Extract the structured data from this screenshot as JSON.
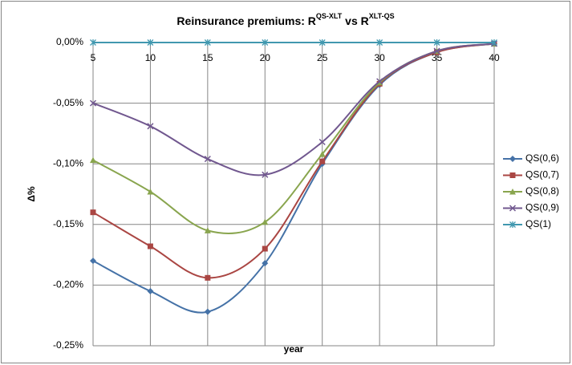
{
  "chart_data": {
    "type": "line",
    "title": [
      "Reinsurance premiums: R",
      "QS-XLT",
      " vs R",
      "XLT-QS"
    ],
    "x_label": "year",
    "y_label": "Δ%",
    "x": [
      5,
      10,
      15,
      20,
      25,
      30,
      35,
      40
    ],
    "series": [
      {
        "name": "QS(0,6)",
        "color": "#4572A7",
        "marker": "diamond",
        "values": [
          -0.18,
          -0.205,
          -0.222,
          -0.182,
          -0.1,
          -0.035,
          -0.008,
          -0.001
        ]
      },
      {
        "name": "QS(0,7)",
        "color": "#AA4643",
        "marker": "square",
        "values": [
          -0.14,
          -0.168,
          -0.194,
          -0.17,
          -0.098,
          -0.034,
          -0.008,
          -0.001
        ]
      },
      {
        "name": "QS(0,8)",
        "color": "#89A54E",
        "marker": "triangle",
        "values": [
          -0.097,
          -0.123,
          -0.155,
          -0.148,
          -0.092,
          -0.033,
          -0.007,
          -0.001
        ]
      },
      {
        "name": "QS(0,9)",
        "color": "#71588F",
        "marker": "x",
        "values": [
          -0.05,
          -0.069,
          -0.096,
          -0.109,
          -0.082,
          -0.032,
          -0.007,
          -0.001
        ]
      },
      {
        "name": "QS(1)",
        "color": "#4198AF",
        "marker": "star",
        "values": [
          0,
          0,
          0,
          0,
          0,
          0,
          0,
          0
        ]
      }
    ],
    "xlim": [
      5,
      40
    ],
    "xticks": [
      5,
      10,
      15,
      20,
      25,
      30,
      35,
      40
    ],
    "ylim": [
      -0.25,
      0
    ],
    "yticks": [
      {
        "value": 0,
        "label": "0,00%"
      },
      {
        "value": -0.05,
        "label": "-0,05%"
      },
      {
        "value": -0.1,
        "label": "-0,10%"
      },
      {
        "value": -0.15,
        "label": "-0,15%"
      },
      {
        "value": -0.2,
        "label": "-0,20%"
      },
      {
        "value": -0.25,
        "label": "-0,25%"
      }
    ],
    "grid": true,
    "smooth": true,
    "legend": "right"
  }
}
